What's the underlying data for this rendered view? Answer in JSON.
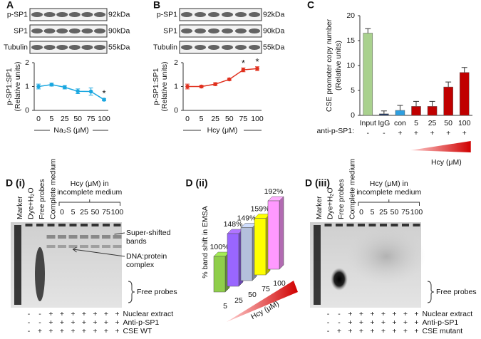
{
  "chart_data": [
    {
      "type": "line",
      "label": "A",
      "blots": [
        {
          "name": "p-SP1",
          "size": "92kDa"
        },
        {
          "name": "SP1",
          "size": "90kDa"
        },
        {
          "name": "Tubulin",
          "size": "55kDa"
        }
      ],
      "categories": [
        "0",
        "5",
        "25",
        "50",
        "75",
        "100"
      ],
      "values": [
        1.0,
        1.08,
        0.97,
        0.8,
        0.79,
        0.45
      ],
      "errors": [
        0.1,
        0.06,
        0.07,
        0.1,
        0.15,
        0.05
      ],
      "marks": [
        null,
        null,
        null,
        null,
        null,
        "*"
      ],
      "color": "#1aa7e0",
      "ylim": [
        0,
        2
      ],
      "yticks": [
        0,
        1,
        2
      ],
      "ylabel": [
        "p-SP1:SP1",
        "(Relative units)"
      ],
      "xlabel": "Na₂S (μM)"
    },
    {
      "type": "line",
      "label": "B",
      "blots": [
        {
          "name": "p-SP1",
          "size": "92kDa"
        },
        {
          "name": "SP1",
          "size": "90kDa"
        },
        {
          "name": "Tubulin",
          "size": "55kDa"
        }
      ],
      "categories": [
        "0",
        "5",
        "25",
        "50",
        "75",
        "100"
      ],
      "values": [
        1.0,
        1.0,
        1.1,
        1.3,
        1.7,
        1.75
      ],
      "errors": [
        0.1,
        0.05,
        0.06,
        0.05,
        0.08,
        0.08
      ],
      "marks": [
        null,
        null,
        null,
        null,
        "*",
        "*"
      ],
      "color": "#e0301e",
      "ylim": [
        0,
        2
      ],
      "yticks": [
        0,
        1,
        2
      ],
      "ylabel": [
        "p-SP1:SP1",
        "(Relative units)"
      ],
      "xlabel": "Hcy (μM)"
    },
    {
      "type": "bar",
      "label": "C",
      "categories": [
        "Input",
        "IgG",
        "con",
        "5",
        "25",
        "50",
        "100"
      ],
      "values": [
        16.5,
        0.3,
        1.0,
        1.8,
        1.8,
        5.7,
        8.6
      ],
      "errors": [
        0.9,
        0.6,
        1.0,
        1.0,
        1.0,
        1.0,
        1.0
      ],
      "colors": [
        "#a9d18e",
        "#203864",
        "#2e9fe0",
        "#c00000",
        "#c00000",
        "#c00000",
        "#c00000"
      ],
      "ylim": [
        0,
        20
      ],
      "yticks": [
        0,
        5,
        10,
        15,
        20
      ],
      "ylabel": [
        "CSE promoter copy number",
        "(Relative units)"
      ],
      "row_label": "anti-p-SP1:",
      "row_values": [
        "-",
        "-",
        "+",
        "+",
        "+",
        "+",
        "+"
      ],
      "xlabel": "Hcy (μM)"
    },
    {
      "type": "bar3d",
      "label": "D (ii)",
      "categories": [
        "5",
        "25",
        "50",
        "75",
        "100"
      ],
      "values": [
        100,
        148,
        149,
        159,
        192
      ],
      "value_labels": [
        "100%",
        "148%",
        "149%",
        "159%",
        "192%"
      ],
      "colors": [
        "#8fce4a",
        "#9966ff",
        "#b4c0dc",
        "#ffff00",
        "#ff99ff"
      ],
      "ylabel": "% band shift in EMSA",
      "xlabel": "Hcy (μM)"
    }
  ],
  "gels": [
    {
      "label": "D (i)",
      "lanes": [
        "Marker",
        "Dye+H₂O",
        "Free probes",
        "Complete medium"
      ],
      "group_label": [
        "Hcy (μM) in",
        "incomplete medium"
      ],
      "group_lanes": [
        "0",
        "5",
        "25",
        "50",
        "75",
        "100"
      ],
      "annotations": [
        {
          "lines": [
            "Super-shifted",
            "bands"
          ]
        },
        {
          "lines": [
            "DNA:protein",
            "complex"
          ]
        },
        {
          "lines": [
            "Free probes"
          ]
        }
      ],
      "rows": [
        {
          "name": "Nuclear extract",
          "signs": [
            "-",
            "-",
            "+",
            "+",
            "+",
            "+",
            "+",
            "+",
            "+"
          ]
        },
        {
          "name": "Anti-p-SP1",
          "signs": [
            "-",
            "-",
            "+",
            "+",
            "+",
            "+",
            "+",
            "+",
            "+"
          ]
        },
        {
          "name": "CSE WT",
          "signs": [
            "-",
            "+",
            "+",
            "+",
            "+",
            "+",
            "+",
            "+",
            "+"
          ]
        }
      ]
    },
    {
      "label": "D (iii)",
      "lanes": [
        "Marker",
        "Dye+H₂O",
        "Free probes",
        "Complete medium"
      ],
      "group_label": [
        "Hcy (μM) in",
        "incomplete medium"
      ],
      "group_lanes": [
        "0",
        "5",
        "25",
        "50",
        "75",
        "100"
      ],
      "annotations": [
        {
          "lines": [
            "Free probes"
          ]
        }
      ],
      "rows": [
        {
          "name": "Nuclear extract",
          "signs": [
            "-",
            "-",
            "+",
            "+",
            "+",
            "+",
            "+",
            "+",
            "+"
          ]
        },
        {
          "name": "Anti-p-SP1",
          "signs": [
            "-",
            "-",
            "+",
            "+",
            "+",
            "+",
            "+",
            "+",
            "+"
          ]
        },
        {
          "name": "CSE mutant",
          "signs": [
            "-",
            "+",
            "+",
            "+",
            "+",
            "+",
            "+",
            "+",
            "+"
          ]
        }
      ]
    }
  ]
}
